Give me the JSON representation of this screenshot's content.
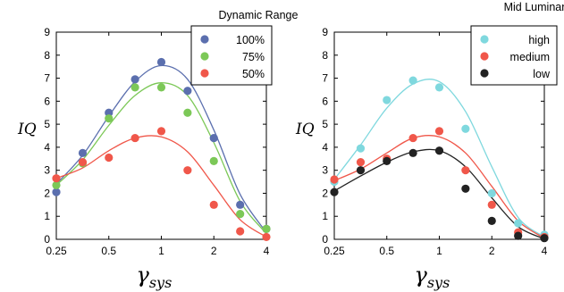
{
  "chart_data": [
    {
      "type": "scatter",
      "xscale": "log2",
      "xlim": [
        0.25,
        4
      ],
      "ylim": [
        0,
        9
      ],
      "xticks": [
        0.25,
        0.5,
        1,
        2,
        4
      ],
      "xtick_labels": [
        "0.25",
        "0.5",
        "1",
        "2",
        "4"
      ],
      "yticks": [
        0,
        1,
        2,
        3,
        4,
        5,
        6,
        7,
        8,
        9
      ],
      "ylabel": "IQ",
      "xlabel_base": "γ",
      "xlabel_sub": "sys",
      "grid": false,
      "legend": {
        "title": "Dynamic Range",
        "position": "top-right",
        "entries": [
          "100%",
          "75%",
          "50%"
        ]
      },
      "x": [
        0.25,
        0.354,
        0.5,
        0.707,
        1,
        1.414,
        2,
        2.83,
        4
      ],
      "series": [
        {
          "name": "100%",
          "color": "#5b6fae",
          "points": [
            2.05,
            3.75,
            5.5,
            6.95,
            7.7,
            6.45,
            4.4,
            1.5,
            0.45
          ],
          "fit": [
            2.4,
            3.65,
            5.35,
            6.85,
            7.55,
            6.95,
            4.75,
            1.95,
            0.3
          ]
        },
        {
          "name": "75%",
          "color": "#7cc857",
          "points": [
            2.35,
            3.3,
            5.25,
            6.6,
            6.6,
            5.5,
            3.4,
            1.1,
            0.45
          ],
          "fit": [
            2.35,
            3.45,
            4.95,
            6.25,
            6.8,
            6.25,
            4.2,
            1.65,
            0.25
          ]
        },
        {
          "name": "50%",
          "color": "#f0574a",
          "points": [
            2.65,
            3.35,
            3.55,
            4.4,
            4.7,
            3.0,
            1.5,
            0.35,
            0.1
          ],
          "fit": [
            2.65,
            3.1,
            3.85,
            4.4,
            4.45,
            3.8,
            2.35,
            0.85,
            0.1
          ]
        }
      ]
    },
    {
      "type": "scatter",
      "xscale": "log2",
      "xlim": [
        0.25,
        4
      ],
      "ylim": [
        0,
        9
      ],
      "xticks": [
        0.25,
        0.5,
        1,
        2,
        4
      ],
      "xtick_labels": [
        "0.25",
        "0.5",
        "1",
        "2",
        "4"
      ],
      "yticks": [
        0,
        1,
        2,
        3,
        4,
        5,
        6,
        7,
        8,
        9
      ],
      "ylabel": "IQ",
      "xlabel_base": "γ",
      "xlabel_sub": "sys",
      "grid": false,
      "legend": {
        "title": "Mid Luminance",
        "position": "top-right",
        "entries": [
          "high",
          "medium",
          "low"
        ]
      },
      "x": [
        0.25,
        0.354,
        0.5,
        0.707,
        1,
        1.414,
        2,
        2.83,
        4
      ],
      "series": [
        {
          "name": "high",
          "color": "#7fd8de",
          "points": [
            2.5,
            3.95,
            6.05,
            6.9,
            6.6,
            4.8,
            2.0,
            0.7,
            0.2
          ],
          "fit": [
            2.6,
            4.1,
            5.7,
            6.75,
            6.85,
            5.55,
            3.15,
            0.95,
            0.1
          ]
        },
        {
          "name": "medium",
          "color": "#f0574a",
          "points": [
            2.6,
            3.35,
            3.5,
            4.4,
            4.7,
            3.0,
            1.5,
            0.3,
            0.1
          ],
          "fit": [
            2.55,
            3.05,
            3.75,
            4.4,
            4.45,
            3.75,
            2.3,
            0.8,
            0.05
          ]
        },
        {
          "name": "low",
          "color": "#222222",
          "points": [
            2.05,
            3.0,
            3.4,
            3.75,
            3.85,
            2.2,
            0.8,
            0.15,
            0.05
          ],
          "fit": [
            2.1,
            2.75,
            3.35,
            3.8,
            3.85,
            3.15,
            1.8,
            0.55,
            0.02
          ]
        }
      ]
    }
  ]
}
